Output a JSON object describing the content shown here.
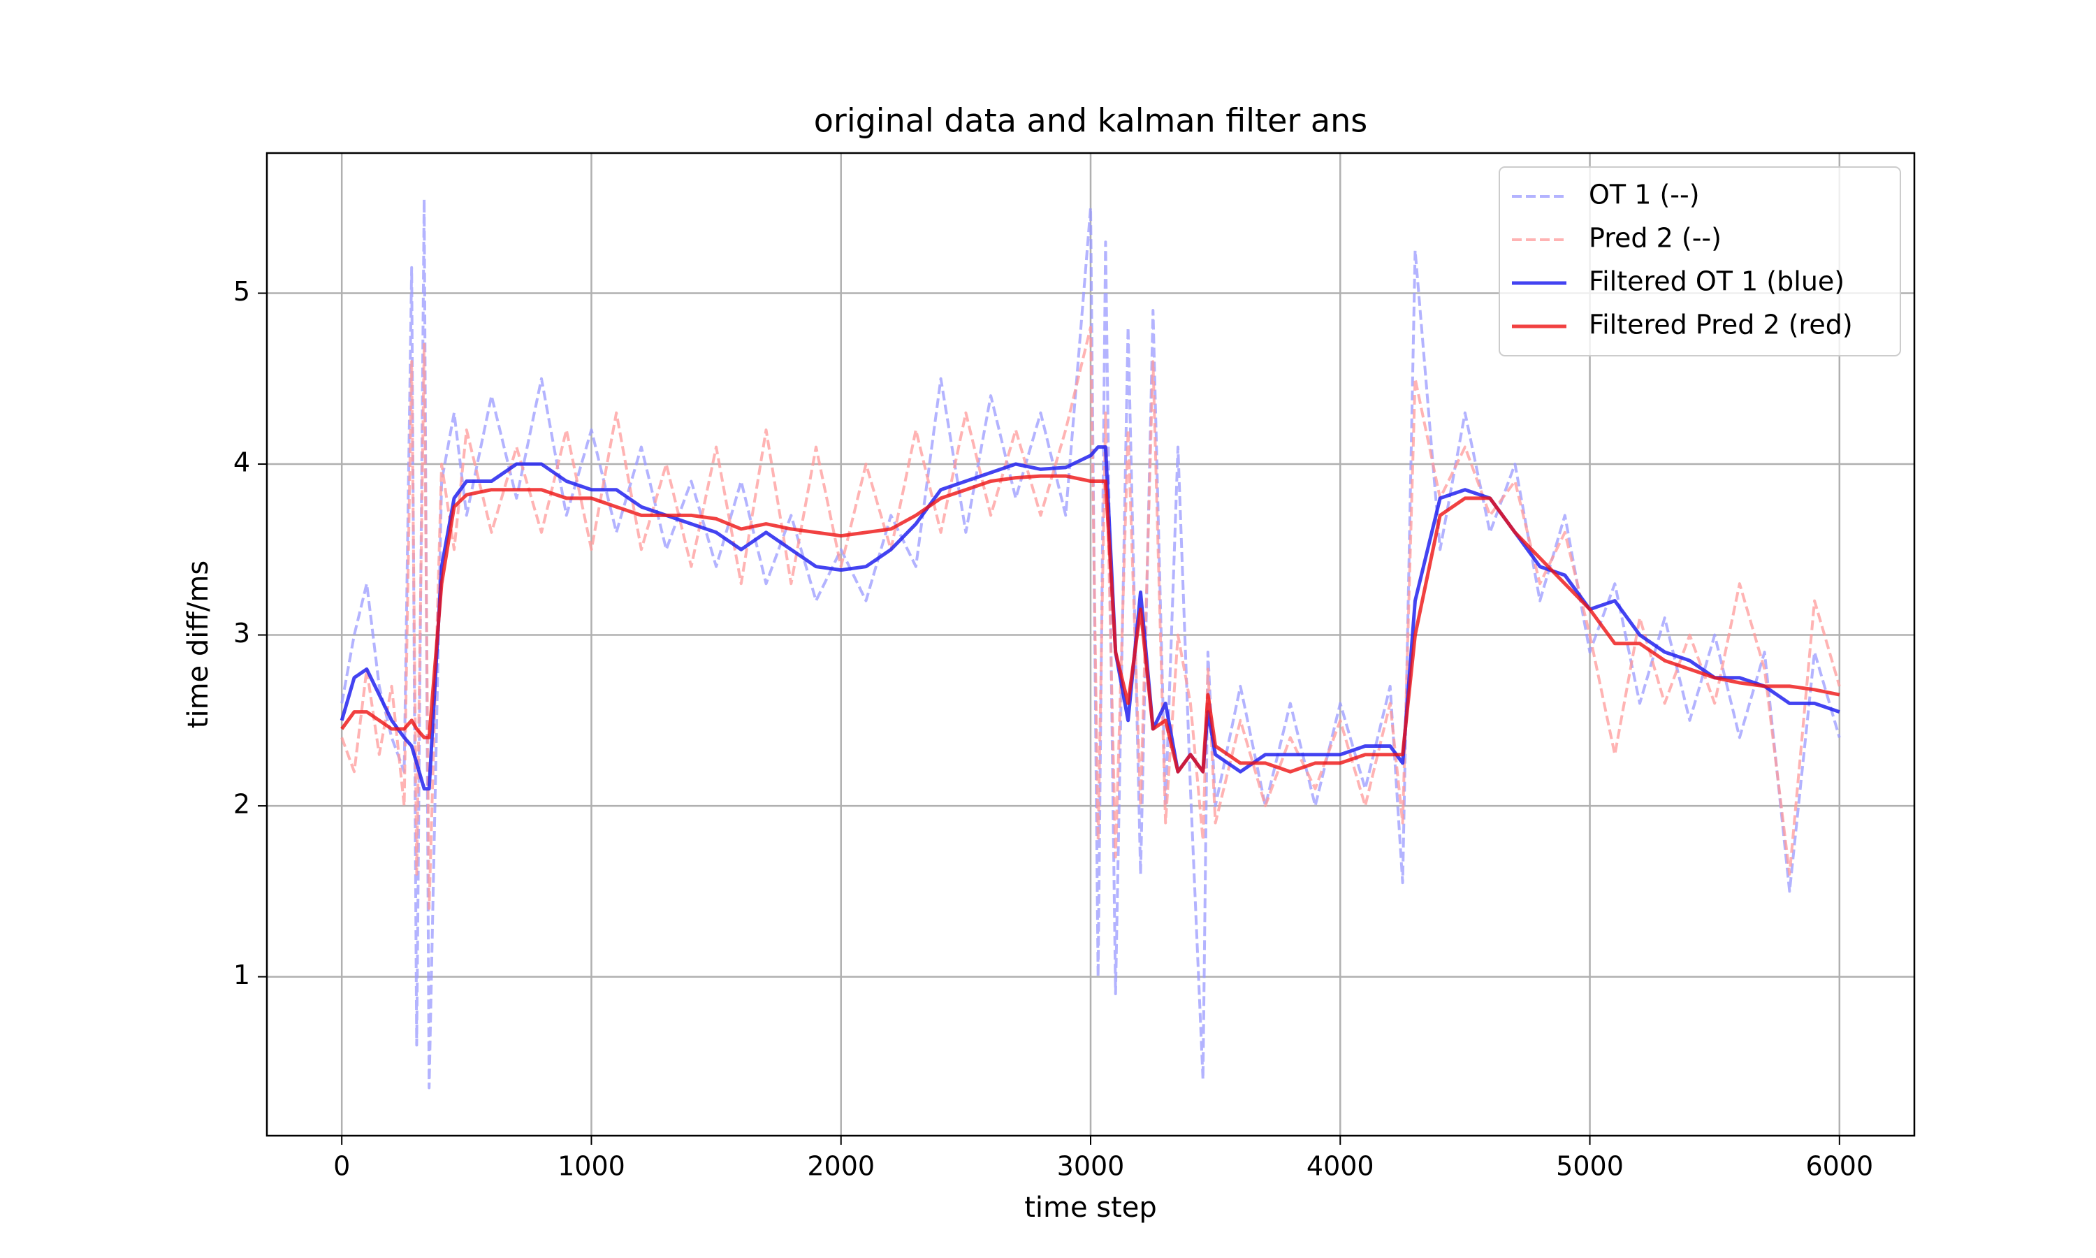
{
  "chart_data": {
    "type": "line",
    "title": "original data and kalman filter ans",
    "x_label": "time step",
    "y_label": "time diff/ms",
    "xlim": [
      -300,
      6300
    ],
    "ylim": [
      0.07,
      5.82
    ],
    "xticks": [
      0,
      1000,
      2000,
      3000,
      4000,
      5000,
      6000
    ],
    "yticks": [
      1,
      2,
      3,
      4,
      5
    ],
    "grid": true,
    "legend": "upper right",
    "x": [
      0,
      50,
      100,
      150,
      200,
      250,
      280,
      300,
      330,
      350,
      400,
      450,
      500,
      600,
      700,
      800,
      900,
      1000,
      1100,
      1200,
      1300,
      1400,
      1500,
      1600,
      1700,
      1800,
      1900,
      2000,
      2100,
      2200,
      2300,
      2400,
      2500,
      2600,
      2700,
      2800,
      2900,
      3000,
      3030,
      3060,
      3100,
      3150,
      3200,
      3250,
      3300,
      3350,
      3400,
      3450,
      3470,
      3500,
      3600,
      3700,
      3800,
      3900,
      4000,
      4100,
      4200,
      4250,
      4300,
      4400,
      4500,
      4600,
      4700,
      4800,
      4900,
      5000,
      5100,
      5200,
      5300,
      5400,
      5500,
      5600,
      5700,
      5800,
      5900,
      6000
    ],
    "series": [
      {
        "name": "OT 1 (--)",
        "color": "#9999ff",
        "opacity": 0.75,
        "dashed": true,
        "width": 4,
        "values": [
          2.6,
          3.0,
          3.3,
          2.7,
          2.4,
          2.2,
          5.15,
          0.6,
          5.55,
          0.35,
          3.9,
          4.3,
          3.7,
          4.4,
          3.8,
          4.5,
          3.7,
          4.2,
          3.6,
          4.1,
          3.5,
          3.9,
          3.4,
          3.9,
          3.3,
          3.7,
          3.2,
          3.5,
          3.2,
          3.7,
          3.4,
          4.5,
          3.6,
          4.4,
          3.8,
          4.3,
          3.7,
          5.5,
          1.0,
          5.3,
          0.9,
          4.8,
          1.6,
          4.9,
          2.0,
          4.1,
          2.1,
          0.4,
          2.9,
          2.0,
          2.7,
          2.0,
          2.6,
          2.0,
          2.6,
          2.1,
          2.7,
          1.55,
          5.25,
          3.5,
          4.3,
          3.6,
          4.0,
          3.2,
          3.7,
          2.9,
          3.3,
          2.6,
          3.1,
          2.5,
          3.0,
          2.4,
          2.9,
          1.5,
          2.9,
          2.4
        ]
      },
      {
        "name": "Pred 2 (--)",
        "color": "#ff9999",
        "opacity": 0.75,
        "dashed": true,
        "width": 4,
        "values": [
          2.4,
          2.2,
          2.8,
          2.3,
          2.7,
          2.0,
          4.6,
          1.6,
          4.7,
          1.4,
          4.0,
          3.5,
          4.2,
          3.6,
          4.1,
          3.6,
          4.2,
          3.5,
          4.3,
          3.5,
          4.0,
          3.4,
          4.1,
          3.3,
          4.2,
          3.3,
          4.1,
          3.4,
          4.0,
          3.5,
          4.2,
          3.6,
          4.3,
          3.7,
          4.2,
          3.7,
          4.2,
          4.8,
          1.8,
          4.3,
          1.7,
          4.2,
          2.0,
          4.6,
          1.9,
          3.0,
          2.6,
          1.8,
          2.8,
          1.9,
          2.5,
          2.0,
          2.4,
          2.1,
          2.5,
          2.0,
          2.6,
          1.9,
          4.5,
          3.8,
          4.1,
          3.7,
          3.9,
          3.3,
          3.6,
          3.0,
          2.3,
          3.1,
          2.6,
          3.0,
          2.6,
          3.3,
          2.8,
          1.6,
          3.2,
          2.7
        ]
      },
      {
        "name": "Filtered OT 1 (blue)",
        "color": "#2222ee",
        "opacity": 0.85,
        "dashed": false,
        "width": 5,
        "values": [
          2.5,
          2.75,
          2.8,
          2.65,
          2.5,
          2.4,
          2.35,
          2.25,
          2.1,
          2.1,
          3.4,
          3.8,
          3.9,
          3.9,
          4.0,
          4.0,
          3.9,
          3.85,
          3.85,
          3.75,
          3.7,
          3.65,
          3.6,
          3.5,
          3.6,
          3.5,
          3.4,
          3.38,
          3.4,
          3.5,
          3.65,
          3.85,
          3.9,
          3.95,
          4.0,
          3.97,
          3.98,
          4.05,
          4.1,
          4.1,
          2.9,
          2.5,
          3.25,
          2.45,
          2.6,
          2.2,
          2.3,
          2.2,
          2.55,
          2.3,
          2.2,
          2.3,
          2.3,
          2.3,
          2.3,
          2.35,
          2.35,
          2.25,
          3.2,
          3.8,
          3.85,
          3.8,
          3.6,
          3.4,
          3.35,
          3.15,
          3.2,
          3.0,
          2.9,
          2.85,
          2.75,
          2.75,
          2.7,
          2.6,
          2.6,
          2.55
        ]
      },
      {
        "name": "Filtered Pred 2 (red)",
        "color": "#ee1111",
        "opacity": 0.8,
        "dashed": false,
        "width": 5,
        "values": [
          2.45,
          2.55,
          2.55,
          2.5,
          2.45,
          2.45,
          2.5,
          2.45,
          2.4,
          2.4,
          3.3,
          3.75,
          3.82,
          3.85,
          3.85,
          3.85,
          3.8,
          3.8,
          3.75,
          3.7,
          3.7,
          3.7,
          3.68,
          3.62,
          3.65,
          3.62,
          3.6,
          3.58,
          3.6,
          3.62,
          3.7,
          3.8,
          3.85,
          3.9,
          3.92,
          3.93,
          3.93,
          3.9,
          3.9,
          3.9,
          2.9,
          2.6,
          3.15,
          2.45,
          2.5,
          2.2,
          2.3,
          2.2,
          2.65,
          2.35,
          2.25,
          2.25,
          2.2,
          2.25,
          2.25,
          2.3,
          2.3,
          2.3,
          3.0,
          3.7,
          3.8,
          3.8,
          3.6,
          3.45,
          3.3,
          3.15,
          2.95,
          2.95,
          2.85,
          2.8,
          2.75,
          2.72,
          2.7,
          2.7,
          2.68,
          2.65
        ]
      }
    ]
  }
}
